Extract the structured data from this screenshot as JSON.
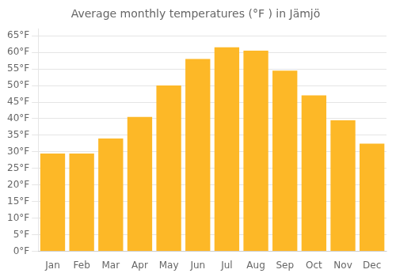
{
  "chart_data": {
    "type": "bar",
    "title": "Average monthly temperatures (°F ) in Jämjö",
    "categories": [
      "Jan",
      "Feb",
      "Mar",
      "Apr",
      "May",
      "Jun",
      "Jul",
      "Aug",
      "Sep",
      "Oct",
      "Nov",
      "Dec"
    ],
    "values": [
      29.5,
      29.5,
      34.0,
      40.5,
      50.0,
      58.0,
      61.5,
      60.5,
      54.5,
      47.0,
      39.5,
      32.5
    ],
    "color": "#FDB827",
    "ylim": [
      0,
      67
    ],
    "yticks": [
      {
        "value": 0,
        "label": "0°F"
      },
      {
        "value": 5,
        "label": "5°F"
      },
      {
        "value": 10,
        "label": "10°F"
      },
      {
        "value": 15,
        "label": "15°F"
      },
      {
        "value": 20,
        "label": "20°F"
      },
      {
        "value": 25,
        "label": "25°F"
      },
      {
        "value": 30,
        "label": "30°F"
      },
      {
        "value": 35,
        "label": "35°F"
      },
      {
        "value": 40,
        "label": "40°F"
      },
      {
        "value": 45,
        "label": "45°F"
      },
      {
        "value": 50,
        "label": "50°F"
      },
      {
        "value": 55,
        "label": "55°F"
      },
      {
        "value": 60,
        "label": "60°F"
      },
      {
        "value": 65,
        "label": "65°F"
      }
    ],
    "grid": true
  }
}
